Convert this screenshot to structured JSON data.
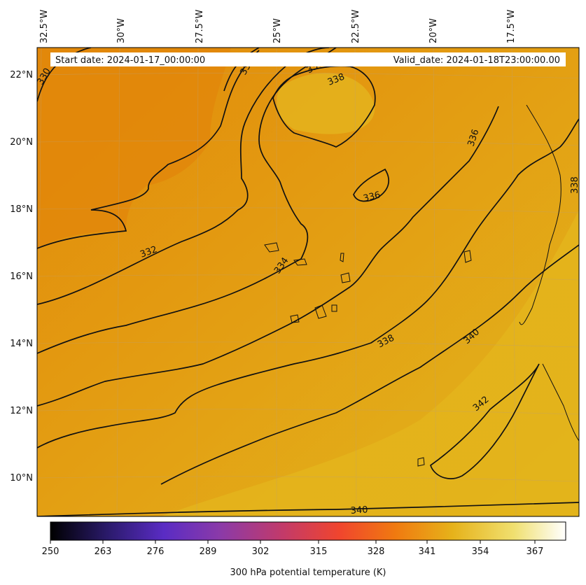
{
  "header": {
    "start_date": "Start date: 2024-01-17_00:00:00",
    "valid_date": "Valid_date: 2024-01-18T23:00:00.00"
  },
  "map": {
    "longitude_labels": [
      "32.5°W",
      "30°W",
      "27.5°W",
      "25°W",
      "22.5°W",
      "20°W",
      "17.5°W"
    ],
    "latitude_labels": [
      "22°N",
      "20°N",
      "18°N",
      "16°N",
      "14°N",
      "12°N",
      "10°N"
    ],
    "field": "300 hPa potential temperature",
    "fill_colors": {
      "warm_dark": "#e2890a",
      "mid": "#e39d12",
      "warm_light": "#e2b61d"
    }
  },
  "contours": {
    "labels": [
      {
        "text": "330"
      },
      {
        "text": "33"
      },
      {
        "text": "330"
      },
      {
        "text": "338"
      },
      {
        "text": "336"
      },
      {
        "text": "338"
      },
      {
        "text": "336"
      },
      {
        "text": "332"
      },
      {
        "text": "334"
      },
      {
        "text": "338"
      },
      {
        "text": "340"
      },
      {
        "text": "342"
      },
      {
        "text": "340"
      }
    ]
  },
  "colorbar": {
    "title": "300 hPa potential temperature (K)",
    "ticks": [
      "250",
      "263",
      "276",
      "289",
      "302",
      "315",
      "328",
      "341",
      "354",
      "367"
    ],
    "colors": [
      "#000000",
      "#2a1a6a",
      "#5a2cc4",
      "#8b3aa8",
      "#c23a6a",
      "#f0452e",
      "#f07a10",
      "#e6b21a",
      "#f0e070",
      "#ffffff"
    ]
  }
}
